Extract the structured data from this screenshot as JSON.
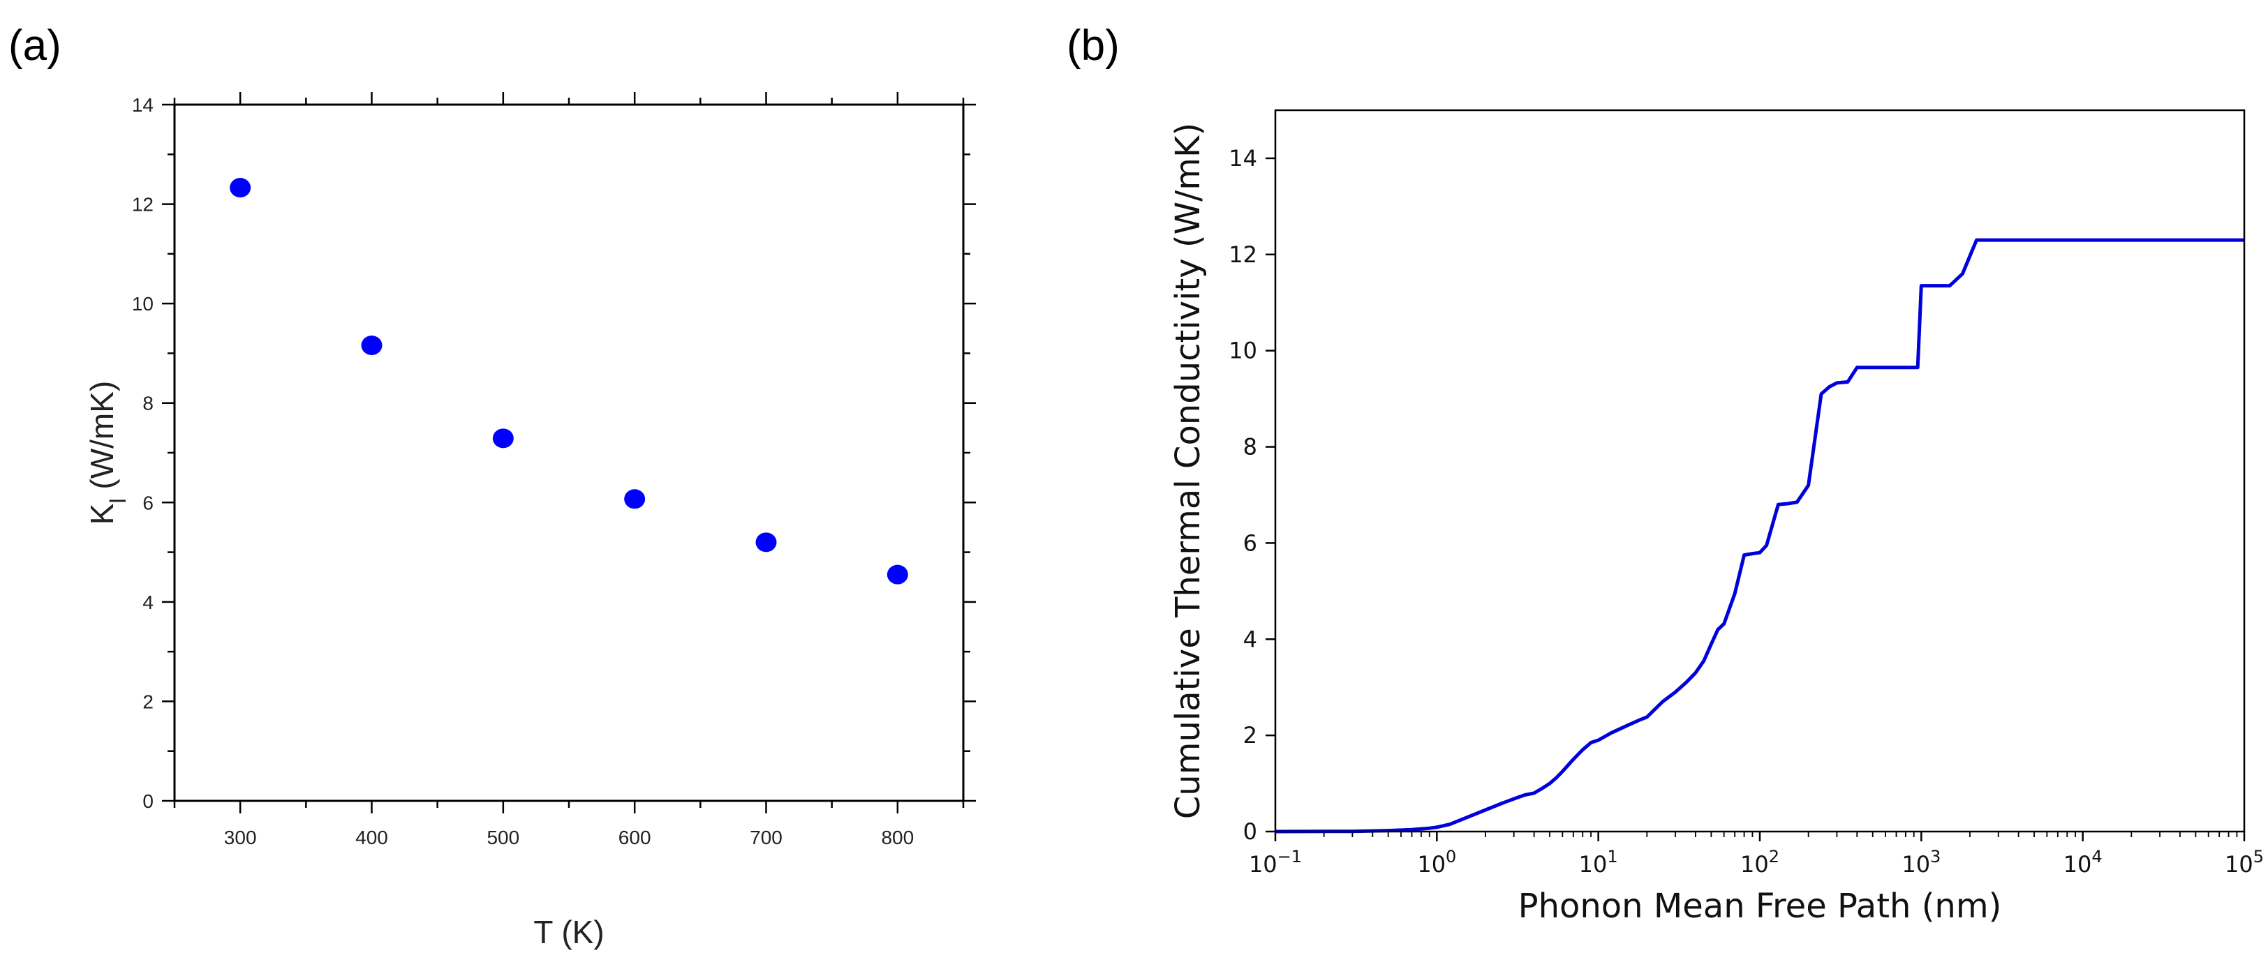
{
  "panels": {
    "a_label": "(a)",
    "b_label": "(b)"
  },
  "chart_data": [
    {
      "type": "scatter",
      "panel": "(a)",
      "xlabel": "T (K)",
      "ylabel_main": "K",
      "ylabel_sub": "l",
      "ylabel_unit": " (W/mK)",
      "xlim": [
        250,
        850
      ],
      "ylim": [
        0,
        14
      ],
      "xticks": [
        300,
        400,
        500,
        600,
        700,
        800
      ],
      "yticks": [
        0,
        2,
        4,
        6,
        8,
        10,
        12,
        14
      ],
      "marker_color": "#0000ff",
      "series": [
        {
          "name": "K_l",
          "x": [
            300,
            400,
            500,
            600,
            700,
            800
          ],
          "y": [
            12.33,
            9.16,
            7.29,
            6.07,
            5.2,
            4.55
          ]
        }
      ]
    },
    {
      "type": "line",
      "panel": "(b)",
      "xlabel": "Phonon Mean Free Path (nm)",
      "ylabel": "Cumulative Thermal Conductivity (W/mK)",
      "xscale": "log",
      "xlim": [
        0.1,
        100000
      ],
      "ylim": [
        0,
        15
      ],
      "xtick_base": "10",
      "xtick_exponents": [
        "−1",
        "0",
        "1",
        "2",
        "3",
        "4",
        "5"
      ],
      "yticks": [
        0,
        2,
        4,
        6,
        8,
        10,
        12,
        14
      ],
      "line_color": "#0000dd",
      "series": [
        {
          "name": "cumulative",
          "x": [
            0.1,
            0.3,
            0.5,
            0.7,
            0.9,
            1.0,
            1.2,
            1.5,
            2,
            2.5,
            3,
            3.5,
            4,
            4.5,
            5,
            5.5,
            6,
            7,
            8,
            9,
            10,
            12,
            15,
            18,
            20,
            25,
            30,
            35,
            40,
            45,
            50,
            55,
            60,
            70,
            80,
            90,
            100,
            110,
            130,
            150,
            170,
            200,
            240,
            270,
            300,
            350,
            400,
            500,
            600,
            800,
            950,
            1000,
            1100,
            1500,
            1800,
            2200,
            5000,
            100000
          ],
          "y": [
            0,
            0.005,
            0.02,
            0.04,
            0.07,
            0.09,
            0.15,
            0.28,
            0.45,
            0.58,
            0.68,
            0.76,
            0.8,
            0.9,
            1.0,
            1.12,
            1.25,
            1.5,
            1.7,
            1.85,
            1.9,
            2.05,
            2.2,
            2.32,
            2.38,
            2.7,
            2.9,
            3.1,
            3.3,
            3.55,
            3.9,
            4.2,
            4.32,
            4.95,
            5.75,
            5.78,
            5.8,
            5.95,
            6.8,
            6.82,
            6.85,
            7.2,
            9.1,
            9.25,
            9.33,
            9.35,
            9.65,
            9.65,
            9.65,
            9.65,
            9.65,
            11.35,
            11.35,
            11.35,
            11.6,
            12.3,
            12.3,
            12.3
          ]
        }
      ]
    }
  ]
}
